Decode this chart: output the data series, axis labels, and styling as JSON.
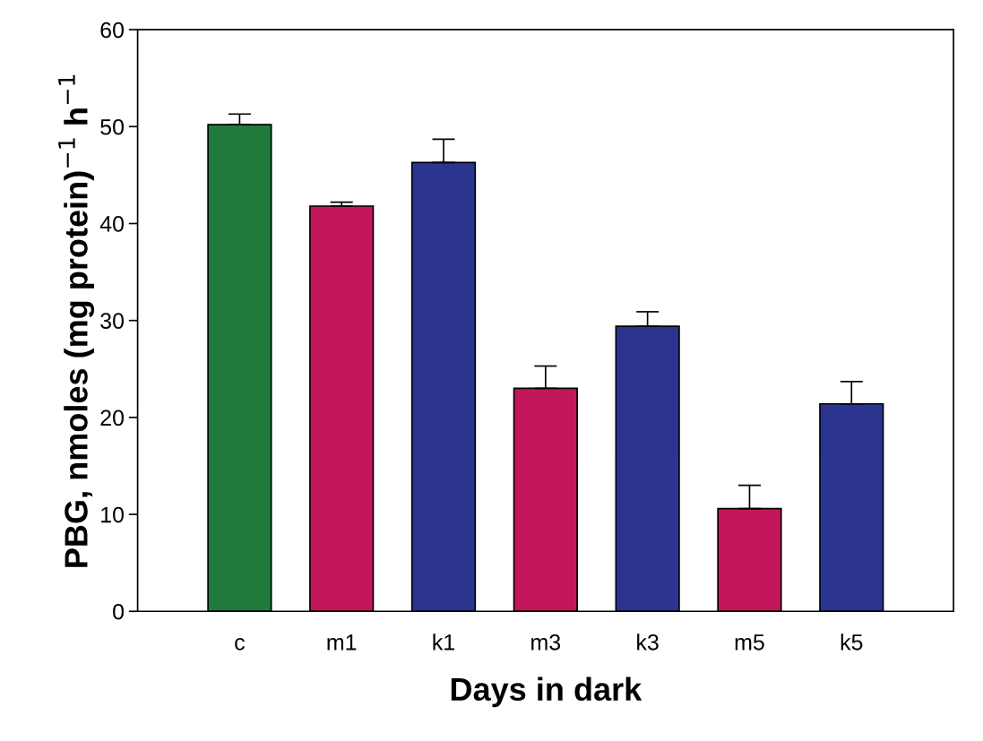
{
  "chart_data": {
    "type": "bar",
    "xlabel": "Days in dark",
    "ylabel": "PBG, nmoles (mg protein)$^{−1}$ h$^{−1}$",
    "categories": [
      "c",
      "m1",
      "k1",
      "m3",
      "k3",
      "m5",
      "k5"
    ],
    "values": [
      50.2,
      41.8,
      46.3,
      23.0,
      29.4,
      10.6,
      21.4
    ],
    "errors": [
      [
        50.2,
        51.3
      ],
      [
        41.8,
        42.2
      ],
      [
        46.3,
        48.7
      ],
      [
        23.0,
        25.3
      ],
      [
        29.4,
        30.9
      ],
      [
        10.6,
        13.0
      ],
      [
        21.4,
        23.7
      ]
    ],
    "colors": [
      "#1f7a3c",
      "#c2185b",
      "#2b3590",
      "#c2185b",
      "#2b3590",
      "#c2185b",
      "#2b3590"
    ],
    "ylim": [
      0,
      60
    ],
    "yticks": [
      0,
      10,
      20,
      30,
      40,
      50,
      60
    ],
    "grid": false,
    "legend": false
  }
}
